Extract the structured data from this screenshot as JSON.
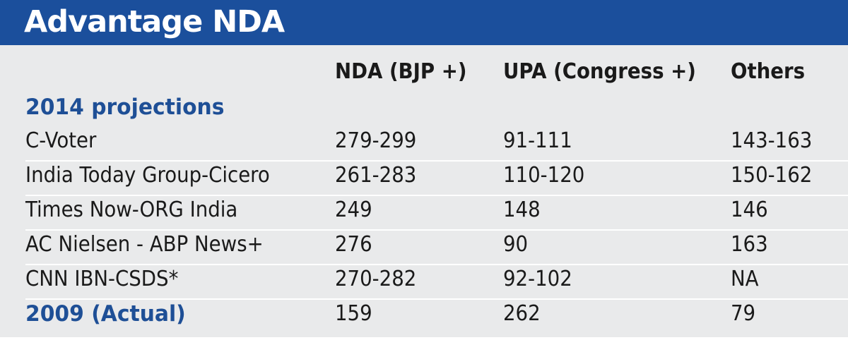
{
  "title": "Advantage NDA",
  "chart_data": {
    "type": "table",
    "columns": [
      "NDA (BJP +)",
      "UPA (Congress +)",
      "Others"
    ],
    "sections": [
      {
        "label": "2014 projections",
        "rows": [
          {
            "name": "C-Voter",
            "values": [
              "279-299",
              "91-111",
              "143-163"
            ]
          },
          {
            "name": "India Today Group-Cicero",
            "values": [
              "261-283",
              "110-120",
              "150-162"
            ]
          },
          {
            "name": "Times Now-ORG India",
            "values": [
              "249",
              "148",
              "146"
            ]
          },
          {
            "name": "AC Nielsen - ABP News+",
            "values": [
              "276",
              "90",
              "163"
            ]
          },
          {
            "name": "CNN IBN-CSDS*",
            "values": [
              "270-282",
              "92-102",
              "NA"
            ]
          }
        ]
      }
    ],
    "actual": {
      "name": "2009 (Actual)",
      "values": [
        "159",
        "262",
        "79"
      ]
    }
  },
  "colors": {
    "title_bar": "#1b4f9c",
    "section_text": "#1e4f96",
    "background": "#e9eaeb"
  }
}
